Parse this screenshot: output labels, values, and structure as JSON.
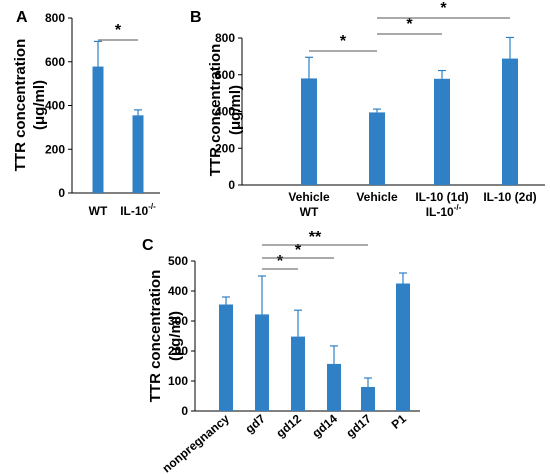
{
  "chart_data": [
    {
      "type": "bar",
      "panel_label": "A",
      "ylabel_line1": "TTR concentration",
      "ylabel_line2": "(μg/ml)",
      "categories": [
        "WT",
        "IL-10"
      ],
      "category_superscripts": [
        "",
        "-/-"
      ],
      "values": [
        578,
        355
      ],
      "errors": [
        115,
        25
      ],
      "ylim": [
        0,
        800
      ],
      "yticks": [
        "0",
        "200",
        "400",
        "600",
        "800"
      ],
      "significance": [
        {
          "from": 0,
          "to": 1,
          "stars": "*"
        }
      ],
      "color": "#2f80c5"
    },
    {
      "type": "bar",
      "panel_label": "B",
      "ylabel_line1": "TTR concentration",
      "ylabel_line2": "(μg/ml)",
      "categories": [
        "Vehicle",
        "Vehicle",
        "IL-10 (1d)",
        "IL-10 (2d)"
      ],
      "values": [
        580,
        395,
        578,
        688
      ],
      "errors": [
        115,
        18,
        45,
        115
      ],
      "ylim": [
        0,
        800
      ],
      "yticks": [
        "0",
        "200",
        "400",
        "600",
        "800"
      ],
      "groups": [
        {
          "label": "WT",
          "superscript": "",
          "from": 0,
          "to": 0
        },
        {
          "label": "IL-10",
          "superscript": "-/-",
          "from": 1,
          "to": 3
        }
      ],
      "significance": [
        {
          "from": 0,
          "to": 1,
          "stars": "*"
        },
        {
          "from": 1,
          "to": 2,
          "stars": "*"
        },
        {
          "from": 1,
          "to": 3,
          "stars": "*"
        }
      ],
      "color": "#2f80c5"
    },
    {
      "type": "bar",
      "panel_label": "C",
      "ylabel_line1": "TTR concentration",
      "ylabel_line2": "(μg/ml)",
      "categories": [
        "nonpregnancy",
        "gd7",
        "gd12",
        "gd14",
        "gd17",
        "P1"
      ],
      "values": [
        355,
        322,
        248,
        157,
        80,
        425
      ],
      "errors": [
        25,
        128,
        88,
        60,
        30,
        35
      ],
      "ylim": [
        0,
        500
      ],
      "yticks": [
        "0",
        "100",
        "200",
        "300",
        "400",
        "500"
      ],
      "significance": [
        {
          "from": 1,
          "to": 2,
          "stars": "*"
        },
        {
          "from": 1,
          "to": 3,
          "stars": "*"
        },
        {
          "from": 1,
          "to": 4,
          "stars": "**"
        }
      ],
      "color": "#2f80c5"
    }
  ]
}
